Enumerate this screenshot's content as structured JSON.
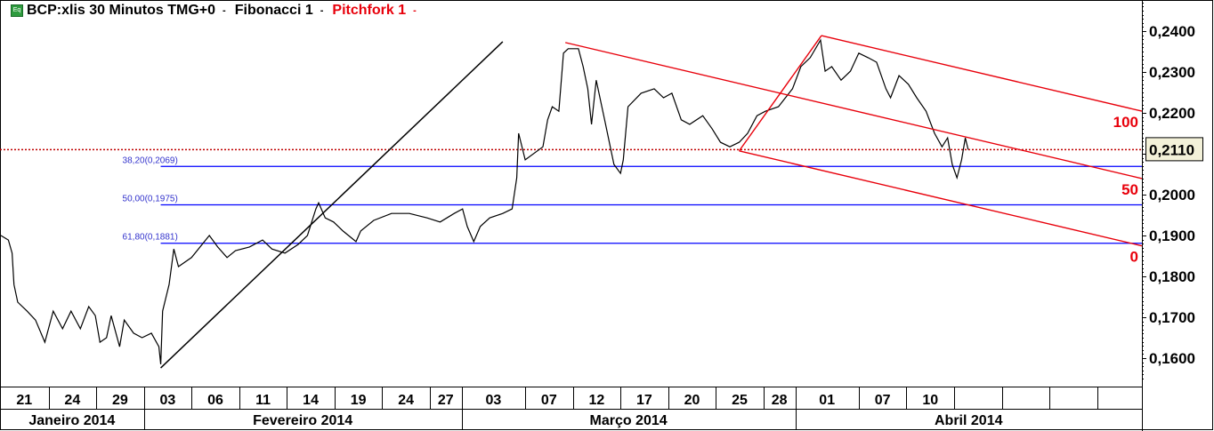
{
  "header": {
    "icon": "equity-icon",
    "icon_text": "Eq",
    "symbol": "BCP:xlis 30 Minutos TMG+0",
    "study1": "Fibonacci 1",
    "study2": "Pitchfork 1",
    "separator": "-"
  },
  "chart_data": {
    "type": "line",
    "title": "BCP:xlis 30 Minutos TMG+0",
    "interval": "30 Minutos",
    "year": 2014,
    "ylim": [
      0.155,
      0.2475
    ],
    "yticks": [
      "0,1600",
      "0,1700",
      "0,1800",
      "0,1900",
      "0,2000",
      "0,2100",
      "0,2200",
      "0,2300",
      "0,2400"
    ],
    "ytick_values": [
      0.16,
      0.17,
      0.18,
      0.19,
      0.2,
      0.21,
      0.22,
      0.23,
      0.24
    ],
    "current_price": 0.211,
    "current_price_label": "0,2110",
    "xticks": [
      {
        "label": "21",
        "date": "01-21"
      },
      {
        "label": "24",
        "date": "01-24"
      },
      {
        "label": "29",
        "date": "01-29"
      },
      {
        "label": "03",
        "date": "02-03"
      },
      {
        "label": "06",
        "date": "02-06"
      },
      {
        "label": "11",
        "date": "02-11"
      },
      {
        "label": "14",
        "date": "02-14"
      },
      {
        "label": "19",
        "date": "02-19"
      },
      {
        "label": "24",
        "date": "02-24"
      },
      {
        "label": "27",
        "date": "02-27"
      },
      {
        "label": "03",
        "date": "03-03"
      },
      {
        "label": "07",
        "date": "03-07"
      },
      {
        "label": "12",
        "date": "03-12"
      },
      {
        "label": "17",
        "date": "03-17"
      },
      {
        "label": "20",
        "date": "03-20"
      },
      {
        "label": "25",
        "date": "03-25"
      },
      {
        "label": "28",
        "date": "03-28"
      },
      {
        "label": "01",
        "date": "04-01"
      },
      {
        "label": "07",
        "date": "04-07"
      },
      {
        "label": "10",
        "date": "04-10"
      },
      {
        "label": "",
        "date": "04-15"
      },
      {
        "label": "",
        "date": "04-18"
      },
      {
        "label": "",
        "date": "04-23"
      },
      {
        "label": "",
        "date": "04-28"
      }
    ],
    "months": [
      {
        "label": "Janeiro 2014",
        "start": "01-21"
      },
      {
        "label": "Fevereiro 2014",
        "start": "02-03"
      },
      {
        "label": "Março 2014",
        "start": "03-03"
      },
      {
        "label": "Abril 2014",
        "start": "04-01"
      }
    ],
    "series": [
      {
        "color": "#000000",
        "points": [
          [
            "01-21 08:00",
            0.19
          ],
          [
            "01-21 12:00",
            0.1889
          ],
          [
            "01-21 14:00",
            0.1857
          ],
          [
            "01-21 15:00",
            0.178
          ],
          [
            "01-22 08:30",
            0.1737
          ],
          [
            "01-22 13:30",
            0.1715
          ],
          [
            "01-23 09:30",
            0.1693
          ],
          [
            "01-23 14:30",
            0.1639
          ],
          [
            "01-24 10:30",
            0.1715
          ],
          [
            "01-24 15:30",
            0.1672
          ],
          [
            "01-27 11:30",
            0.1715
          ],
          [
            "01-28 08:00",
            0.1672
          ],
          [
            "01-28 12:30",
            0.1726
          ],
          [
            "01-28 16:00",
            0.1704
          ],
          [
            "01-29 10:00",
            0.1639
          ],
          [
            "01-29 13:30",
            0.165
          ],
          [
            "01-29 16:00",
            0.1704
          ],
          [
            "01-30 12:00",
            0.1628
          ],
          [
            "01-30 14:30",
            0.1693
          ],
          [
            "01-31 11:00",
            0.1661
          ],
          [
            "01-31 15:30",
            0.165
          ],
          [
            "02-03 12:00",
            0.1661
          ],
          [
            "02-03 16:00",
            0.1628
          ],
          [
            "02-04 08:30",
            0.1585
          ],
          [
            "02-04 09:30",
            0.1715
          ],
          [
            "02-04 13:00",
            0.178
          ],
          [
            "02-04 15:30",
            0.1867
          ],
          [
            "02-05 09:30",
            0.1824
          ],
          [
            "02-06 08:00",
            0.1846
          ],
          [
            "02-07 09:00",
            0.19
          ],
          [
            "02-07 13:30",
            0.1872
          ],
          [
            "02-10 10:00",
            0.1846
          ],
          [
            "02-10 14:30",
            0.1863
          ],
          [
            "02-11 13:30",
            0.1872
          ],
          [
            "02-12 12:00",
            0.1889
          ],
          [
            "02-13 08:30",
            0.1867
          ],
          [
            "02-13 15:30",
            0.1857
          ],
          [
            "02-14 14:00",
            0.1878
          ],
          [
            "02-17 10:30",
            0.19
          ],
          [
            "02-17 15:00",
            0.1965
          ],
          [
            "02-18 08:00",
            0.198
          ],
          [
            "02-18 11:30",
            0.1943
          ],
          [
            "02-18 16:00",
            0.1933
          ],
          [
            "02-19 12:30",
            0.1911
          ],
          [
            "02-20 11:00",
            0.1885
          ],
          [
            "02-20 13:30",
            0.1911
          ],
          [
            "02-21 12:00",
            0.1937
          ],
          [
            "02-24 13:00",
            0.1954
          ],
          [
            "02-25 14:00",
            0.1954
          ],
          [
            "02-26 15:00",
            0.1943
          ],
          [
            "02-27 13:30",
            0.1933
          ],
          [
            "02-28 12:30",
            0.1954
          ],
          [
            "03-03 08:30",
            0.1965
          ],
          [
            "03-03 11:00",
            0.1922
          ],
          [
            "03-03 14:30",
            0.1885
          ],
          [
            "03-04 09:30",
            0.1922
          ],
          [
            "03-04 14:30",
            0.1943
          ],
          [
            "03-05 13:00",
            0.1954
          ],
          [
            "03-06 09:30",
            0.1965
          ],
          [
            "03-06 12:00",
            0.2041
          ],
          [
            "03-06 13:00",
            0.215
          ],
          [
            "03-07 08:00",
            0.2085
          ],
          [
            "03-10 09:00",
            0.2117
          ],
          [
            "03-10 11:30",
            0.2183
          ],
          [
            "03-10 14:00",
            0.2215
          ],
          [
            "03-11 09:00",
            0.2204
          ],
          [
            "03-11 11:30",
            0.2346
          ],
          [
            "03-11 14:00",
            0.2357
          ],
          [
            "03-12 11:00",
            0.2357
          ],
          [
            "03-12 13:30",
            0.2313
          ],
          [
            "03-12 16:00",
            0.2259
          ],
          [
            "03-13 09:30",
            0.2172
          ],
          [
            "03-13 12:00",
            0.228
          ],
          [
            "03-14 08:30",
            0.2172
          ],
          [
            "03-14 13:00",
            0.2074
          ],
          [
            "03-14 16:30",
            0.2052
          ],
          [
            "03-17 09:30",
            0.2085
          ],
          [
            "03-17 12:00",
            0.2215
          ],
          [
            "03-18 10:30",
            0.2248
          ],
          [
            "03-19 09:00",
            0.2259
          ],
          [
            "03-19 14:00",
            0.2237
          ],
          [
            "03-20 10:00",
            0.2248
          ],
          [
            "03-20 15:00",
            0.2183
          ],
          [
            "03-21 11:00",
            0.2172
          ],
          [
            "03-24 09:30",
            0.2193
          ],
          [
            "03-24 14:30",
            0.2161
          ],
          [
            "03-25 10:30",
            0.2128
          ],
          [
            "03-25 15:30",
            0.2117
          ],
          [
            "03-26 12:00",
            0.2128
          ],
          [
            "03-27 08:00",
            0.215
          ],
          [
            "03-27 13:00",
            0.2193
          ],
          [
            "03-28 09:00",
            0.2204
          ],
          [
            "03-28 16:00",
            0.2215
          ],
          [
            "03-31 15:00",
            0.2259
          ],
          [
            "04-01 11:00",
            0.2313
          ],
          [
            "04-01 16:00",
            0.2335
          ],
          [
            "04-02 13:00",
            0.2378
          ],
          [
            "04-02 15:30",
            0.2302
          ],
          [
            "04-03 10:30",
            0.2313
          ],
          [
            "04-03 15:30",
            0.228
          ],
          [
            "04-04 12:00",
            0.2302
          ],
          [
            "04-07 08:00",
            0.2346
          ],
          [
            "04-07 13:00",
            0.2335
          ],
          [
            "04-08 09:00",
            0.2324
          ],
          [
            "04-08 14:00",
            0.2259
          ],
          [
            "04-08 16:30",
            0.2237
          ],
          [
            "04-09 12:30",
            0.2291
          ],
          [
            "04-10 09:00",
            0.227
          ],
          [
            "04-10 13:30",
            0.2237
          ],
          [
            "04-11 10:00",
            0.2204
          ],
          [
            "04-11 14:30",
            0.215
          ],
          [
            "04-14 10:00",
            0.2117
          ],
          [
            "04-14 13:00",
            0.2139
          ],
          [
            "04-14 15:30",
            0.2074
          ],
          [
            "04-15 09:30",
            0.2041
          ],
          [
            "04-15 12:00",
            0.2085
          ],
          [
            "04-15 14:00",
            0.2139
          ],
          [
            "04-15 15:30",
            0.211
          ]
        ]
      }
    ],
    "trendline": {
      "color": "#000000",
      "from": [
        "02-04 08:30",
        0.1576
      ],
      "to": [
        "03-05 13:00",
        0.2374
      ]
    },
    "fibonacci": {
      "color": "#0000ff",
      "start": "02-04 08:30",
      "levels": [
        {
          "label": "38,20(0,2069)",
          "value": 0.2069
        },
        {
          "label": "50,00(0,1975)",
          "value": 0.1975
        },
        {
          "label": "61,80(0,1881)",
          "value": 0.1881
        }
      ]
    },
    "pitchfork": {
      "color": "#e8000b",
      "p1": [
        "03-11 12:30",
        0.2372
      ],
      "p2": [
        "04-02 13:30",
        0.2389
      ],
      "p3": [
        "03-26 12:00",
        0.2107
      ],
      "labels": [
        "100",
        "50",
        "0"
      ]
    },
    "grid": false
  }
}
